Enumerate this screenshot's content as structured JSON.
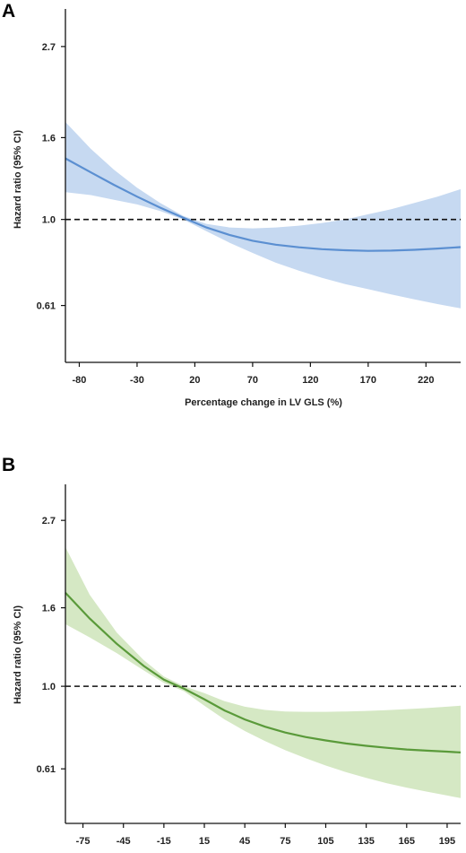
{
  "chart_data": [
    {
      "panel": "A",
      "type": "line",
      "xlabel": "Percentage change in LV GLS (%)",
      "ylabel": "Hazard ratio (95% CI)",
      "xlim": [
        -92,
        250
      ],
      "ylim": [
        0.44,
        3.35
      ],
      "yscale": "log",
      "xticks": [
        -80,
        -30,
        20,
        70,
        120,
        170,
        220
      ],
      "yticks": [
        0.61,
        1.0,
        1.6,
        2.7
      ],
      "ytick_labels": [
        "0.61",
        "1.0",
        "1.6",
        "2.7"
      ],
      "reference_line": 1.0,
      "color": "#5b8fd1",
      "band_color": "#c6d9f1",
      "x": [
        -92,
        -70,
        -50,
        -30,
        -10,
        10,
        30,
        50,
        70,
        90,
        110,
        130,
        150,
        170,
        190,
        210,
        230,
        250
      ],
      "hr": [
        1.42,
        1.31,
        1.22,
        1.14,
        1.07,
        1.01,
        0.955,
        0.915,
        0.885,
        0.865,
        0.852,
        0.843,
        0.838,
        0.835,
        0.836,
        0.84,
        0.846,
        0.853
      ],
      "lower": [
        1.17,
        1.15,
        1.12,
        1.09,
        1.05,
        1.0,
        0.935,
        0.875,
        0.825,
        0.78,
        0.745,
        0.715,
        0.69,
        0.67,
        0.65,
        0.632,
        0.615,
        0.6
      ],
      "upper": [
        1.75,
        1.5,
        1.33,
        1.2,
        1.1,
        1.02,
        0.975,
        0.955,
        0.95,
        0.955,
        0.965,
        0.98,
        1.0,
        1.03,
        1.06,
        1.1,
        1.14,
        1.19
      ]
    },
    {
      "panel": "B",
      "type": "line",
      "xlabel": "",
      "ylabel": "Hazard ratio (95% CI)",
      "xlim": [
        -88,
        205
      ],
      "ylim": [
        0.44,
        3.35
      ],
      "yscale": "log",
      "xticks": [
        -75,
        -45,
        -15,
        15,
        45,
        75,
        105,
        135,
        165,
        195
      ],
      "yticks": [
        0.61,
        1.0,
        1.6,
        2.7
      ],
      "ytick_labels": [
        "0.61",
        "1.0",
        "1.6",
        "2.7"
      ],
      "reference_line": 1.0,
      "color": "#5a9a3a",
      "band_color": "#d5e8c4",
      "x": [
        -88,
        -70,
        -50,
        -30,
        -15,
        0,
        15,
        30,
        45,
        60,
        75,
        90,
        105,
        120,
        135,
        150,
        165,
        180,
        195,
        205
      ],
      "hr": [
        1.75,
        1.5,
        1.29,
        1.13,
        1.04,
        0.985,
        0.925,
        0.865,
        0.82,
        0.785,
        0.758,
        0.738,
        0.723,
        0.71,
        0.7,
        0.692,
        0.685,
        0.68,
        0.676,
        0.673
      ],
      "lower": [
        1.45,
        1.34,
        1.22,
        1.1,
        1.02,
        0.97,
        0.89,
        0.82,
        0.765,
        0.72,
        0.682,
        0.65,
        0.622,
        0.598,
        0.578,
        0.56,
        0.545,
        0.532,
        0.52,
        0.512
      ],
      "upper": [
        2.3,
        1.73,
        1.38,
        1.17,
        1.06,
        1.0,
        0.96,
        0.915,
        0.885,
        0.868,
        0.86,
        0.858,
        0.858,
        0.86,
        0.863,
        0.867,
        0.872,
        0.878,
        0.885,
        0.89
      ]
    }
  ],
  "panels": {
    "a": {
      "label": "A",
      "ylabel": "Hazard ratio (95% CI)",
      "xlabel": "Percentage change in LV GLS (%)"
    },
    "b": {
      "label": "B",
      "ylabel": "Hazard ratio (95% CI)"
    }
  }
}
